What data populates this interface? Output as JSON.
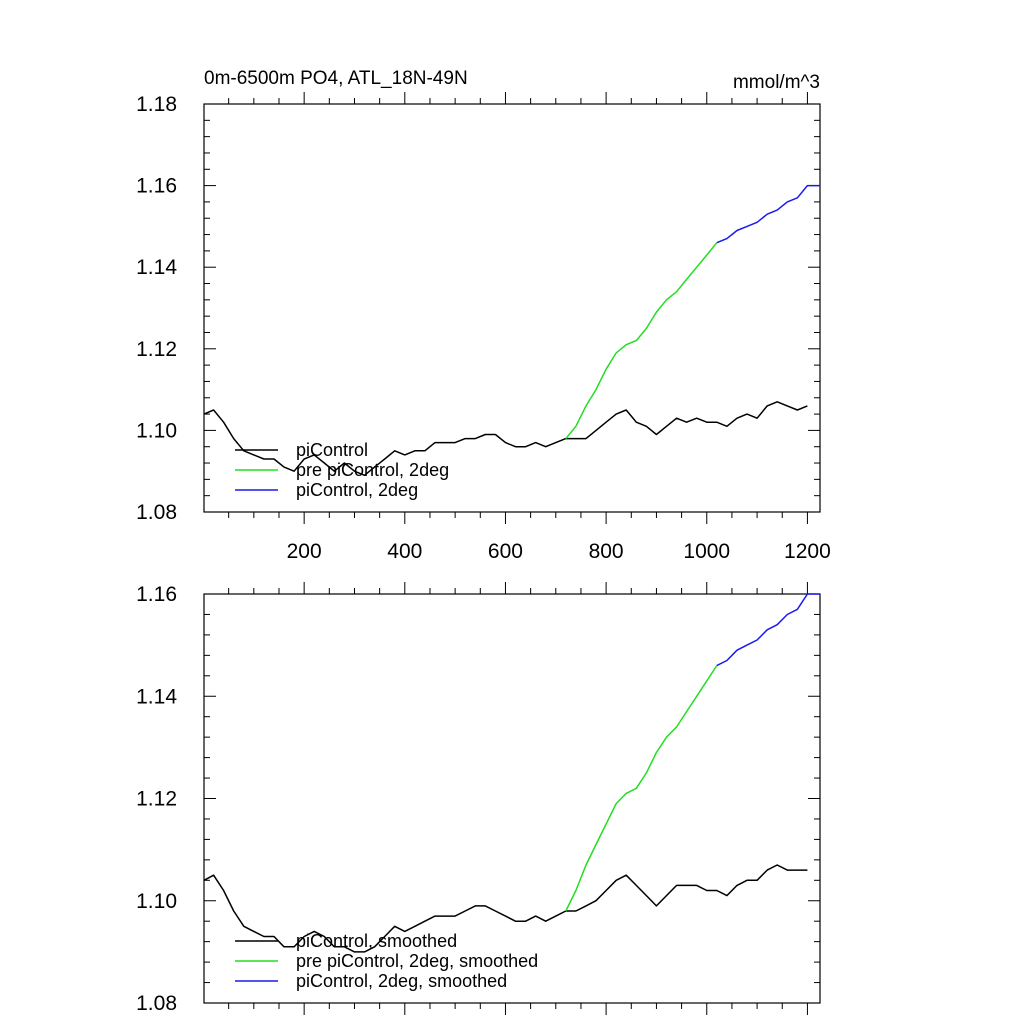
{
  "chart_data": [
    {
      "type": "line",
      "title": "0m-6500m PO4, ATL_18N-49N",
      "units": "mmol/m^3",
      "xlim": [
        1,
        1225
      ],
      "ylim": [
        1.08,
        1.18
      ],
      "xticks": [
        200,
        400,
        600,
        800,
        1000,
        1200
      ],
      "yticks": [
        1.08,
        1.1,
        1.12,
        1.14,
        1.16,
        1.18
      ],
      "ytick_labels": [
        "1.08",
        "1.10",
        "1.12",
        "1.14",
        "1.16",
        "1.18"
      ],
      "legend_position": "bottom-left",
      "series": [
        {
          "name": "piControl",
          "color": "#000000",
          "x": [
            1,
            20,
            40,
            60,
            80,
            100,
            120,
            140,
            160,
            180,
            200,
            220,
            240,
            260,
            280,
            300,
            320,
            340,
            360,
            380,
            400,
            420,
            440,
            460,
            480,
            500,
            520,
            540,
            560,
            580,
            600,
            620,
            640,
            660,
            680,
            700,
            720,
            740,
            760,
            780,
            800,
            820,
            840,
            860,
            880,
            900,
            920,
            940,
            960,
            980,
            1000,
            1020,
            1040,
            1060,
            1080,
            1100,
            1120,
            1140,
            1160,
            1180,
            1200
          ],
          "y": [
            1.104,
            1.105,
            1.102,
            1.098,
            1.095,
            1.094,
            1.093,
            1.093,
            1.091,
            1.09,
            1.093,
            1.094,
            1.092,
            1.09,
            1.092,
            1.09,
            1.089,
            1.091,
            1.093,
            1.095,
            1.094,
            1.095,
            1.095,
            1.097,
            1.097,
            1.097,
            1.098,
            1.098,
            1.099,
            1.099,
            1.097,
            1.096,
            1.096,
            1.097,
            1.096,
            1.097,
            1.098,
            1.098,
            1.098,
            1.1,
            1.102,
            1.104,
            1.105,
            1.102,
            1.101,
            1.099,
            1.101,
            1.103,
            1.102,
            1.103,
            1.102,
            1.102,
            1.101,
            1.103,
            1.104,
            1.103,
            1.106,
            1.107,
            1.106,
            1.105,
            1.106
          ]
        },
        {
          "name": "pre piControl, 2deg",
          "color": "#22dd22",
          "x": [
            720,
            740,
            760,
            780,
            800,
            820,
            840,
            860,
            880,
            900,
            920,
            940,
            960,
            980,
            1000,
            1020
          ],
          "y": [
            1.098,
            1.101,
            1.106,
            1.11,
            1.115,
            1.119,
            1.121,
            1.122,
            1.125,
            1.129,
            1.132,
            1.134,
            1.137,
            1.14,
            1.143,
            1.146
          ]
        },
        {
          "name": "piControl, 2deg",
          "color": "#1a1aee",
          "x": [
            1020,
            1040,
            1060,
            1080,
            1100,
            1120,
            1140,
            1160,
            1180,
            1200,
            1225
          ],
          "y": [
            1.146,
            1.147,
            1.149,
            1.15,
            1.151,
            1.153,
            1.154,
            1.156,
            1.157,
            1.16,
            1.16
          ]
        }
      ]
    },
    {
      "type": "line",
      "title": "",
      "xlim": [
        1,
        1225
      ],
      "ylim": [
        1.08,
        1.16
      ],
      "xticks": [
        200,
        400,
        600,
        800,
        1000,
        1200
      ],
      "yticks": [
        1.08,
        1.1,
        1.12,
        1.14,
        1.16
      ],
      "ytick_labels": [
        "1.08",
        "1.10",
        "1.12",
        "1.14",
        "1.16"
      ],
      "legend_position": "bottom-left",
      "series": [
        {
          "name": "piControl, smoothed",
          "color": "#000000",
          "x": [
            1,
            20,
            40,
            60,
            80,
            100,
            120,
            140,
            160,
            180,
            200,
            220,
            240,
            260,
            280,
            300,
            320,
            340,
            360,
            380,
            400,
            420,
            440,
            460,
            480,
            500,
            520,
            540,
            560,
            580,
            600,
            620,
            640,
            660,
            680,
            700,
            720,
            740,
            760,
            780,
            800,
            820,
            840,
            860,
            880,
            900,
            920,
            940,
            960,
            980,
            1000,
            1020,
            1040,
            1060,
            1080,
            1100,
            1120,
            1140,
            1160,
            1180,
            1200
          ],
          "y": [
            1.104,
            1.105,
            1.102,
            1.098,
            1.095,
            1.094,
            1.093,
            1.093,
            1.091,
            1.091,
            1.093,
            1.094,
            1.093,
            1.091,
            1.091,
            1.09,
            1.09,
            1.091,
            1.093,
            1.095,
            1.094,
            1.095,
            1.096,
            1.097,
            1.097,
            1.097,
            1.098,
            1.099,
            1.099,
            1.098,
            1.097,
            1.096,
            1.096,
            1.097,
            1.096,
            1.097,
            1.098,
            1.098,
            1.099,
            1.1,
            1.102,
            1.104,
            1.105,
            1.103,
            1.101,
            1.099,
            1.101,
            1.103,
            1.103,
            1.103,
            1.102,
            1.102,
            1.101,
            1.103,
            1.104,
            1.104,
            1.106,
            1.107,
            1.106,
            1.106,
            1.106
          ]
        },
        {
          "name": "pre piControl, 2deg, smoothed",
          "color": "#22dd22",
          "x": [
            720,
            740,
            760,
            780,
            800,
            820,
            840,
            860,
            880,
            900,
            920,
            940,
            960,
            980,
            1000,
            1020
          ],
          "y": [
            1.098,
            1.102,
            1.107,
            1.111,
            1.115,
            1.119,
            1.121,
            1.122,
            1.125,
            1.129,
            1.132,
            1.134,
            1.137,
            1.14,
            1.143,
            1.146
          ]
        },
        {
          "name": "piControl, 2deg, smoothed",
          "color": "#1a1aee",
          "x": [
            1020,
            1040,
            1060,
            1080,
            1100,
            1120,
            1140,
            1160,
            1180,
            1200,
            1225
          ],
          "y": [
            1.146,
            1.147,
            1.149,
            1.15,
            1.151,
            1.153,
            1.154,
            1.156,
            1.157,
            1.16,
            1.16
          ]
        }
      ]
    }
  ]
}
